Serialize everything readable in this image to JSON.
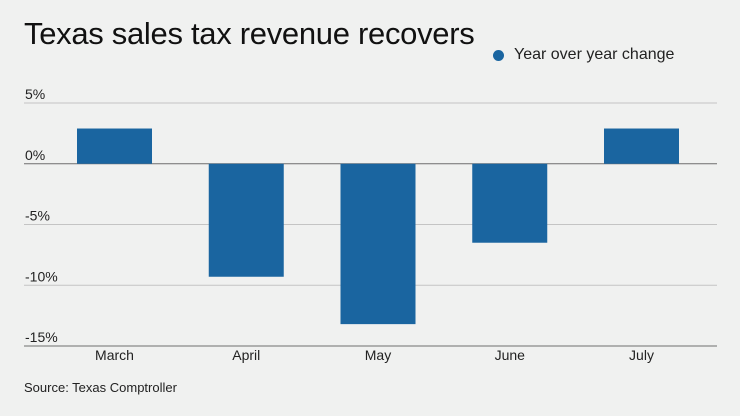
{
  "title": "Texas sales tax revenue recovers",
  "legend": {
    "label": "Year over year change",
    "color": "#1a65a0"
  },
  "source": "Source: Texas Comptroller",
  "chart_data": {
    "type": "bar",
    "title": "Texas sales tax revenue recovers",
    "xlabel": "",
    "ylabel": "",
    "categories": [
      "March",
      "April",
      "May",
      "June",
      "July"
    ],
    "series": [
      {
        "name": "Year over year change",
        "values": [
          2.9,
          -9.3,
          -13.2,
          -6.5,
          2.9
        ],
        "color": "#1a65a0"
      }
    ],
    "ylim": [
      -15,
      5
    ],
    "yticks": [
      5,
      0,
      -5,
      -10,
      -15
    ],
    "ytick_labels": [
      "5%",
      "0%",
      "-5%",
      "-10%",
      "-15%"
    ],
    "grid": true,
    "legend_position": "top-right"
  }
}
